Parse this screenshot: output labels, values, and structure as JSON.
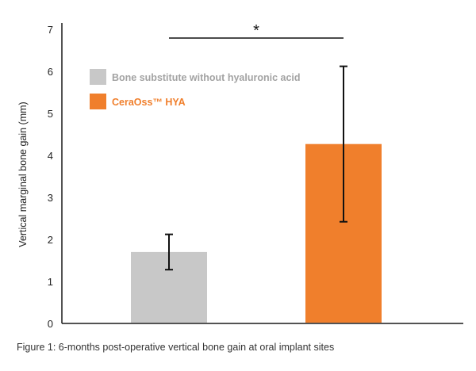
{
  "caption": "Figure 1: 6-months post-operative vertical bone gain at oral implant sites",
  "colors": {
    "series_gray": "#c8c8c8",
    "series_orange": "#f07f2c",
    "legend_gray_text": "#a3a3a3",
    "legend_orange_text": "#f07f2c",
    "axis": "#1a1a1a"
  },
  "chart_data": {
    "type": "bar",
    "categories": [
      "Bone substitute without hyaluronic acid",
      "CeraOss™ HYA"
    ],
    "series": [
      {
        "name": "Bone substitute without hyaluronic acid",
        "value": 1.7,
        "error_low": 1.28,
        "error_high": 2.12,
        "color": "#c8c8c8"
      },
      {
        "name": "CeraOss™ HYA",
        "value": 4.27,
        "error_low": 2.42,
        "error_high": 6.12,
        "color": "#f07f2c"
      }
    ],
    "ylabel": "Vertical marginal bone gain (mm)",
    "xlabel": "",
    "ylim": [
      0,
      7
    ],
    "yticks": [
      "0",
      "1",
      "2",
      "3",
      "4",
      "5",
      "6",
      "7"
    ],
    "grid": false,
    "legend_position": "top-left",
    "significance": {
      "between": [
        0,
        1
      ],
      "label": "*"
    }
  }
}
